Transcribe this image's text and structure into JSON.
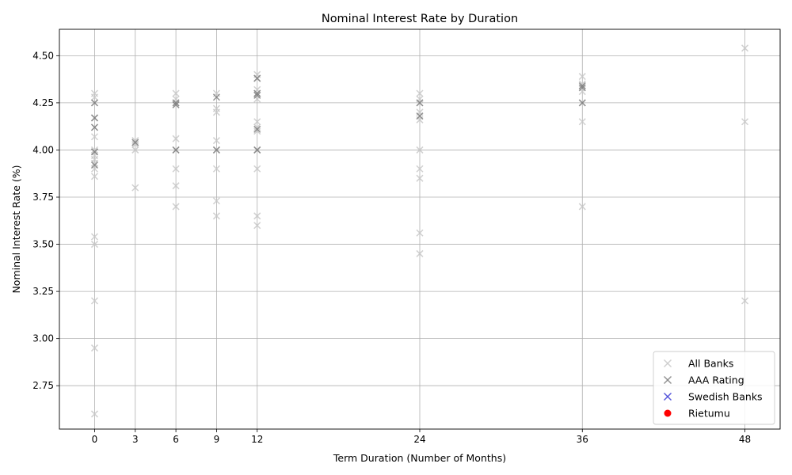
{
  "chart_data": {
    "type": "scatter",
    "title": "Nominal Interest Rate by Duration",
    "xlabel": "Term Duration (Number of Months)",
    "ylabel": "Nominal Interest Rate (%)",
    "xlim": [
      -2.6,
      50.6
    ],
    "ylim": [
      2.52,
      4.64
    ],
    "x_ticks": [
      0,
      3,
      6,
      9,
      12,
      24,
      36,
      48
    ],
    "y_ticks": [
      2.75,
      3.0,
      3.25,
      3.5,
      3.75,
      4.0,
      4.25,
      4.5
    ],
    "y_tick_labels": [
      "2.75",
      "3.00",
      "3.25",
      "3.50",
      "3.75",
      "4.00",
      "4.25",
      "4.50"
    ],
    "grid": true,
    "legend_position": "lower-right",
    "series": [
      {
        "name": "All Banks",
        "marker": "x",
        "color": "#c8c8c8",
        "points": [
          [
            0,
            4.3
          ],
          [
            0,
            4.28
          ],
          [
            0,
            4.25
          ],
          [
            0,
            4.17
          ],
          [
            0,
            4.12
          ],
          [
            0,
            4.07
          ],
          [
            0,
            4.0
          ],
          [
            0,
            3.99
          ],
          [
            0,
            3.97
          ],
          [
            0,
            3.95
          ],
          [
            0,
            3.93
          ],
          [
            0,
            3.9
          ],
          [
            0,
            3.86
          ],
          [
            0,
            3.54
          ],
          [
            0,
            3.5
          ],
          [
            0,
            3.2
          ],
          [
            0,
            2.95
          ],
          [
            0,
            2.6
          ],
          [
            3,
            4.05
          ],
          [
            3,
            4.03
          ],
          [
            3,
            4.0
          ],
          [
            3,
            3.8
          ],
          [
            6,
            4.3
          ],
          [
            6,
            4.27
          ],
          [
            6,
            4.25
          ],
          [
            6,
            4.06
          ],
          [
            6,
            4.0
          ],
          [
            6,
            3.9
          ],
          [
            6,
            3.81
          ],
          [
            6,
            3.7
          ],
          [
            9,
            4.3
          ],
          [
            9,
            4.22
          ],
          [
            9,
            4.2
          ],
          [
            9,
            4.05
          ],
          [
            9,
            4.0
          ],
          [
            9,
            3.9
          ],
          [
            9,
            3.73
          ],
          [
            9,
            3.65
          ],
          [
            12,
            4.4
          ],
          [
            12,
            4.38
          ],
          [
            12,
            4.32
          ],
          [
            12,
            4.3
          ],
          [
            12,
            4.27
          ],
          [
            12,
            4.15
          ],
          [
            12,
            4.12
          ],
          [
            12,
            4.1
          ],
          [
            12,
            4.0
          ],
          [
            12,
            3.9
          ],
          [
            12,
            3.65
          ],
          [
            12,
            3.6
          ],
          [
            24,
            4.3
          ],
          [
            24,
            4.27
          ],
          [
            24,
            4.25
          ],
          [
            24,
            4.2
          ],
          [
            24,
            4.16
          ],
          [
            24,
            4.0
          ],
          [
            24,
            3.9
          ],
          [
            24,
            3.85
          ],
          [
            24,
            3.56
          ],
          [
            24,
            3.45
          ],
          [
            36,
            4.39
          ],
          [
            36,
            4.35
          ],
          [
            36,
            4.31
          ],
          [
            36,
            4.25
          ],
          [
            36,
            4.15
          ],
          [
            36,
            3.7
          ],
          [
            48,
            4.54
          ],
          [
            48,
            4.15
          ],
          [
            48,
            3.2
          ]
        ]
      },
      {
        "name": "AAA Rating",
        "marker": "x",
        "color": "#808080",
        "points": [
          [
            0,
            4.25
          ],
          [
            0,
            4.17
          ],
          [
            0,
            4.12
          ],
          [
            0,
            3.99
          ],
          [
            0,
            3.92
          ],
          [
            3,
            4.04
          ],
          [
            6,
            4.25
          ],
          [
            6,
            4.24
          ],
          [
            6,
            4.0
          ],
          [
            9,
            4.28
          ],
          [
            9,
            4.0
          ],
          [
            12,
            4.38
          ],
          [
            12,
            4.3
          ],
          [
            12,
            4.29
          ],
          [
            12,
            4.11
          ],
          [
            12,
            4.0
          ],
          [
            24,
            4.25
          ],
          [
            24,
            4.18
          ],
          [
            36,
            4.34
          ],
          [
            36,
            4.33
          ],
          [
            36,
            4.25
          ]
        ]
      },
      {
        "name": "Swedish Banks",
        "marker": "x",
        "color": "#3d3dd6",
        "points": []
      },
      {
        "name": "Rietumu",
        "marker": "o",
        "color": "#ff0000",
        "points": []
      }
    ]
  }
}
